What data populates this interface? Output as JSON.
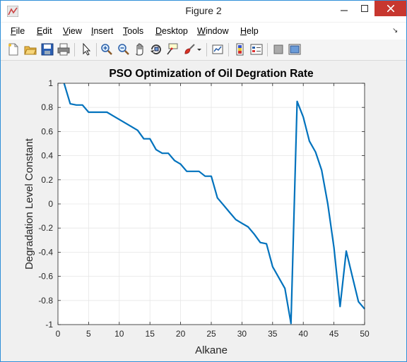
{
  "window": {
    "title": "Figure 2"
  },
  "menu": {
    "items": [
      "File",
      "Edit",
      "View",
      "Insert",
      "Tools",
      "Desktop",
      "Window",
      "Help"
    ],
    "underline": [
      "F",
      "E",
      "V",
      "I",
      "T",
      "D",
      "W",
      "H"
    ]
  },
  "toolbar": {
    "icons": [
      "new-figure-icon",
      "open-file-icon",
      "save-icon",
      "print-icon",
      "select-arrow-icon",
      "zoom-in-icon",
      "zoom-out-icon",
      "pan-icon",
      "rotate-3d-icon",
      "data-cursor-icon",
      "brush-icon",
      "brush-dropdown-icon",
      "link-plot-icon",
      "colorbar-icon",
      "legend-icon",
      "hide-plot-tools-icon",
      "show-plot-tools-icon"
    ]
  },
  "chart_data": {
    "type": "line",
    "title": "PSO Optimization of Oil Degration Rate",
    "xlabel": "Alkane",
    "ylabel": "Degradation Level Constant",
    "xlim": [
      0,
      50
    ],
    "ylim": [
      -1,
      1
    ],
    "xticks": [
      0,
      5,
      10,
      15,
      20,
      25,
      30,
      35,
      40,
      45,
      50
    ],
    "yticks": [
      -1,
      -0.8,
      -0.6,
      -0.4,
      -0.2,
      0,
      0.2,
      0.4,
      0.6,
      0.8,
      1
    ],
    "grid": true,
    "color": "#0072bd",
    "x": [
      1,
      2,
      3,
      4,
      5,
      6,
      7,
      8,
      9,
      10,
      11,
      12,
      13,
      14,
      15,
      16,
      17,
      18,
      19,
      20,
      21,
      22,
      23,
      24,
      25,
      26,
      27,
      28,
      29,
      30,
      31,
      32,
      33,
      34,
      35,
      36,
      37,
      38,
      39,
      40,
      41,
      42,
      43,
      44,
      45,
      46,
      47,
      48,
      49,
      50
    ],
    "values": [
      1.0,
      0.83,
      0.82,
      0.82,
      0.76,
      0.76,
      0.76,
      0.76,
      0.73,
      0.7,
      0.67,
      0.64,
      0.61,
      0.54,
      0.54,
      0.45,
      0.42,
      0.42,
      0.36,
      0.33,
      0.27,
      0.27,
      0.27,
      0.23,
      0.23,
      0.05,
      -0.01,
      -0.07,
      -0.13,
      -0.16,
      -0.19,
      -0.25,
      -0.32,
      -0.33,
      -0.52,
      -0.61,
      -0.7,
      -0.99,
      0.85,
      0.72,
      0.52,
      0.43,
      0.28,
      0.0,
      -0.36,
      -0.85,
      -0.39,
      -0.6,
      -0.81,
      -0.87
    ]
  }
}
